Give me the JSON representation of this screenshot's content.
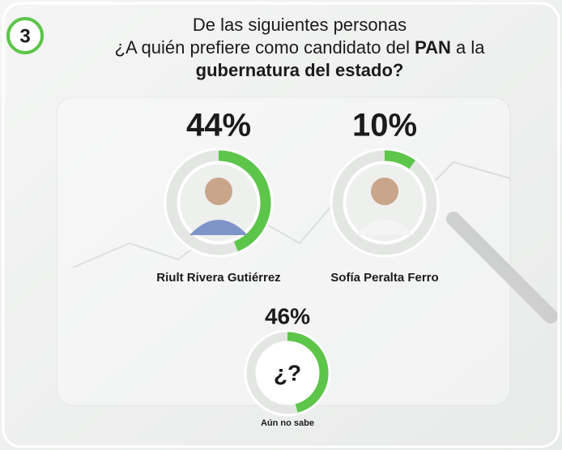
{
  "badge": "3",
  "chart_data": {
    "type": "donut",
    "title": {
      "line1": "De las siguientes personas",
      "line2_start": "¿A quién prefiere como candidato del ",
      "line2_bold": "PAN",
      "line2_end": " a la",
      "line3": "gubernatura del estado?"
    },
    "categories": [
      "Riult Rivera Gutiérrez",
      "Sofía Peralta Ferro",
      "Aún no sabe"
    ],
    "values": [
      44,
      10,
      46
    ],
    "value_labels": [
      "44%",
      "10%",
      "46%"
    ],
    "unknown_symbol": "¿?",
    "color": "#5dc54a",
    "track_color": "#e4e6e4"
  }
}
